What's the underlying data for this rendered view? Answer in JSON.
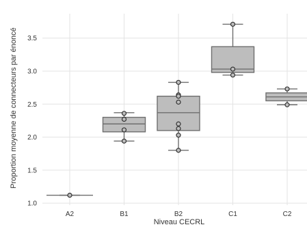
{
  "chart_data": {
    "type": "box",
    "title": "",
    "xlabel": "Niveau CECRL",
    "ylabel": "Proportion moyenne de connecteurs par énoncé",
    "ylim": [
      0.97,
      3.87
    ],
    "yticks": [
      "1.0",
      "1.5",
      "2.0",
      "2.5",
      "3.0",
      "3.5"
    ],
    "categories": [
      "A2",
      "B1",
      "B2",
      "C1",
      "C2"
    ],
    "grid": true,
    "colors": {
      "box_fill": "#bdbdbd",
      "box_edge": "#6e6e6e",
      "point_fill": "#bdbdbd",
      "point_edge": "#333333",
      "grid": "#e3e3e3"
    },
    "boxes": [
      {
        "category": "A2",
        "whisker_low": 1.12,
        "q1": 1.12,
        "median": 1.12,
        "q3": 1.12,
        "whisker_high": 1.12,
        "points": [
          1.12
        ]
      },
      {
        "category": "B1",
        "whisker_low": 1.94,
        "q1": 2.08,
        "median": 2.2,
        "q3": 2.3,
        "whisker_high": 2.37,
        "points": [
          2.36,
          2.27,
          2.11,
          1.94
        ]
      },
      {
        "category": "B2",
        "whisker_low": 1.8,
        "q1": 2.1,
        "median": 2.37,
        "q3": 2.62,
        "whisker_high": 2.83,
        "points": [
          2.83,
          2.64,
          2.62,
          2.53,
          2.2,
          2.13,
          2.03,
          1.8
        ]
      },
      {
        "category": "C1",
        "whisker_low": 2.94,
        "q1": 2.98,
        "median": 3.03,
        "q3": 3.37,
        "whisker_high": 3.71,
        "points": [
          3.71,
          3.03,
          2.94
        ]
      },
      {
        "category": "C2",
        "whisker_low": 2.49,
        "q1": 2.55,
        "median": 2.61,
        "q3": 2.67,
        "whisker_high": 2.73,
        "points": [
          2.73,
          2.49
        ]
      }
    ]
  }
}
